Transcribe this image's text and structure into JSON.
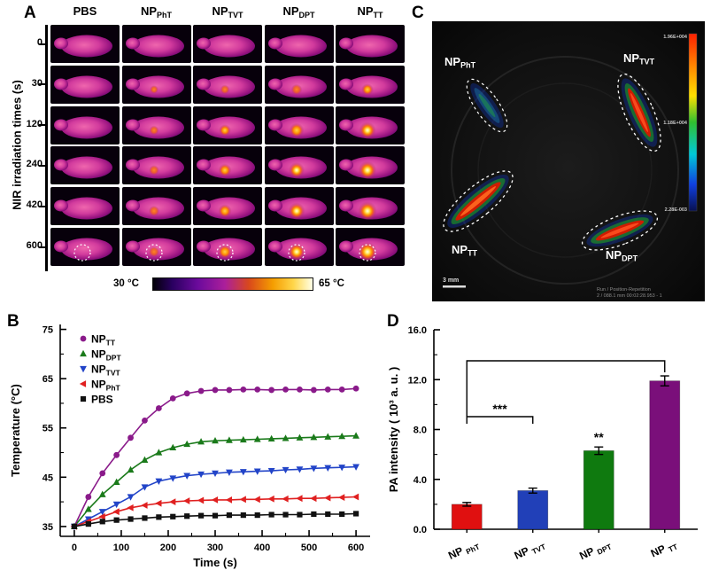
{
  "panelA": {
    "label": "A",
    "y_axis_title": "NIR irradiation times (s)",
    "row_labels": [
      "0",
      "30",
      "120",
      "240",
      "420",
      "600"
    ],
    "columns": [
      {
        "main": "PBS",
        "sub": ""
      },
      {
        "main": "NP",
        "sub": "PhT"
      },
      {
        "main": "NP",
        "sub": "TVT"
      },
      {
        "main": "NP",
        "sub": "DPT"
      },
      {
        "main": "NP",
        "sub": "TT"
      }
    ],
    "hotspot_levels": [
      [
        0,
        0,
        0,
        0,
        0
      ],
      [
        0,
        0.12,
        0.2,
        0.32,
        0.4
      ],
      [
        0,
        0.2,
        0.4,
        0.62,
        0.8
      ],
      [
        0,
        0.26,
        0.48,
        0.72,
        0.9
      ],
      [
        0,
        0.3,
        0.52,
        0.78,
        0.96
      ],
      [
        0,
        0.3,
        0.55,
        0.82,
        1.0
      ]
    ],
    "colorbar": {
      "min_label": "30 °C",
      "max_label": "65 °C"
    }
  },
  "panelB": {
    "label": "B"
  },
  "panelC": {
    "label": "C",
    "regions": [
      {
        "main": "NP",
        "sub": "PhT"
      },
      {
        "main": "NP",
        "sub": "TVT"
      },
      {
        "main": "NP",
        "sub": "TT"
      },
      {
        "main": "NP",
        "sub": "DPT"
      }
    ],
    "colorbar_labels": [
      "1.96E+004",
      "1.18E+004",
      "2.28E-003"
    ],
    "scale_bar": "3 mm",
    "meta_line1": "Run / Position-Repetition",
    "meta_line2": "2 / 088.1 mm 00:02:28.953 - 1"
  },
  "panelD": {
    "label": "D"
  },
  "chart_data": [
    {
      "type": "line",
      "panel": "B",
      "xlabel": "Time (s)",
      "ylabel": "Temperature (°C)",
      "xlim": [
        -30,
        630
      ],
      "ylim": [
        33,
        76
      ],
      "xticks": [
        0,
        100,
        200,
        300,
        400,
        500,
        600
      ],
      "yticks": [
        35,
        45,
        55,
        65,
        75
      ],
      "legend_position": "top-left",
      "x": [
        0,
        30,
        60,
        90,
        120,
        150,
        180,
        210,
        240,
        270,
        300,
        330,
        360,
        390,
        420,
        450,
        480,
        510,
        540,
        570,
        600
      ],
      "series": [
        {
          "name_main": "NP",
          "name_sub": "TT",
          "color": "#8a1a8a",
          "marker": "circle",
          "values": [
            35,
            41,
            45.8,
            49.5,
            53,
            56.5,
            59,
            61,
            62,
            62.5,
            62.7,
            62.7,
            62.8,
            62.8,
            62.7,
            62.8,
            62.8,
            62.7,
            62.8,
            62.8,
            63
          ]
        },
        {
          "name_main": "NP",
          "name_sub": "DPT",
          "color": "#1a7a1a",
          "marker": "triangle-up",
          "values": [
            35,
            38.5,
            41.5,
            44,
            46.5,
            48.5,
            50,
            51,
            51.7,
            52.2,
            52.4,
            52.5,
            52.6,
            52.7,
            52.8,
            52.9,
            53,
            53.1,
            53.2,
            53.3,
            53.4
          ]
        },
        {
          "name_main": "NP",
          "name_sub": "TVT",
          "color": "#2244c8",
          "marker": "triangle-down",
          "values": [
            35,
            36.5,
            38,
            39.5,
            41,
            43,
            44.2,
            44.8,
            45.3,
            45.6,
            45.8,
            46,
            46.1,
            46.2,
            46.3,
            46.5,
            46.6,
            46.8,
            46.9,
            47,
            47.1
          ]
        },
        {
          "name_main": "NP",
          "name_sub": "PhT",
          "color": "#e02020",
          "marker": "triangle-left",
          "values": [
            35,
            36,
            37,
            38,
            38.8,
            39.3,
            39.7,
            40,
            40.2,
            40.3,
            40.4,
            40.4,
            40.5,
            40.5,
            40.6,
            40.6,
            40.7,
            40.7,
            40.8,
            40.9,
            41
          ]
        },
        {
          "name_main": "PBS",
          "name_sub": "",
          "color": "#111111",
          "marker": "square",
          "values": [
            35,
            35.5,
            36,
            36.3,
            36.5,
            36.7,
            36.9,
            37,
            37.1,
            37.2,
            37.2,
            37.3,
            37.3,
            37.3,
            37.4,
            37.4,
            37.4,
            37.5,
            37.5,
            37.5,
            37.6
          ]
        }
      ]
    },
    {
      "type": "bar",
      "panel": "D",
      "ylabel": "PA intensity ( 10³ a. u. )",
      "ylim": [
        0,
        16
      ],
      "yticks": [
        "0.0",
        "4.0",
        "8.0",
        "12.0",
        "16.0"
      ],
      "categories": [
        {
          "main": "NP",
          "sub": "PhT"
        },
        {
          "main": "NP",
          "sub": "TVT"
        },
        {
          "main": "NP",
          "sub": "DPT"
        },
        {
          "main": "NP",
          "sub": "TT"
        }
      ],
      "values": [
        2.0,
        3.1,
        6.3,
        11.9
      ],
      "errors": [
        0.15,
        0.2,
        0.3,
        0.4
      ],
      "colors": [
        "#e01010",
        "#2140b8",
        "#0f7a0f",
        "#7a0f7a"
      ],
      "significance": {
        "lower": {
          "label": "***",
          "between": [
            0,
            1
          ]
        },
        "star": {
          "label": "**",
          "above": 2
        },
        "upper_bracket": {
          "between": [
            0,
            3
          ]
        }
      }
    }
  ]
}
